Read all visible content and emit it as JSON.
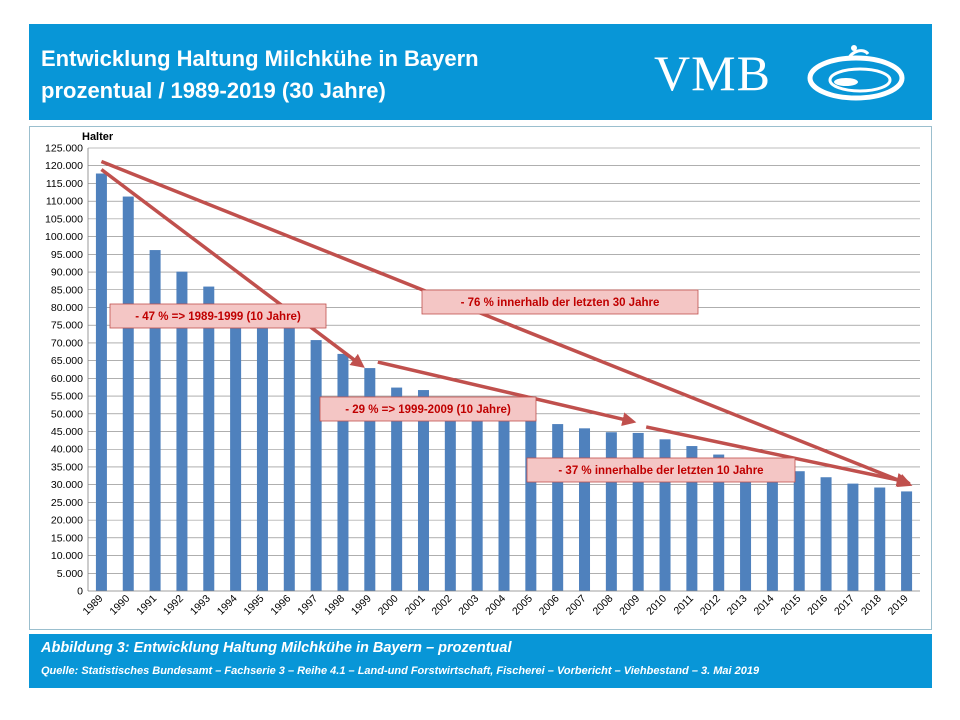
{
  "header": {
    "title_line1": "Entwicklung Haltung Milchkühe in Bayern",
    "title_line2": "prozentual / 1989-2019 (30 Jahre)",
    "logo_text": "VMB"
  },
  "chart_data": {
    "type": "bar",
    "ylabel": "Halter",
    "xlabel": "",
    "ylim": [
      0,
      125000
    ],
    "ytick_step": 5000,
    "ytick_labels": [
      "0",
      "5.000",
      "10.000",
      "15.000",
      "20.000",
      "25.000",
      "30.000",
      "35.000",
      "40.000",
      "45.000",
      "50.000",
      "55.000",
      "60.000",
      "65.000",
      "70.000",
      "75.000",
      "80.000",
      "85.000",
      "90.000",
      "95.000",
      "100.000",
      "105.000",
      "110.000",
      "115.000",
      "120.000",
      "125.000"
    ],
    "grid": true,
    "bar_color": "#4f81bd",
    "categories": [
      "1989",
      "1990",
      "1991",
      "1992",
      "1993",
      "1994",
      "1995",
      "1996",
      "1997",
      "1998",
      "1999",
      "2000",
      "2001",
      "2002",
      "2003",
      "2004",
      "2005",
      "2006",
      "2007",
      "2008",
      "2009",
      "2010",
      "2011",
      "2012",
      "2013",
      "2014",
      "2015",
      "2016",
      "2017",
      "2018",
      "2019"
    ],
    "values": [
      117800,
      111300,
      96200,
      90100,
      85900,
      80100,
      77200,
      74200,
      70800,
      66900,
      62900,
      57400,
      56700,
      52900,
      51300,
      50000,
      48600,
      47100,
      45900,
      44800,
      44600,
      42800,
      40900,
      38500,
      36200,
      34700,
      33800,
      32100,
      30300,
      29200,
      28100
    ],
    "annotations": [
      {
        "text": "- 47 %  => 1989-1999  (10 Jahre)",
        "from": "1989",
        "to": "1999"
      },
      {
        "text": "- 29 % => 1999-2009  (10 Jahre)",
        "from": "1999",
        "to": "2009"
      },
      {
        "text": "- 37 % innerhalbe der letzten 10 Jahre",
        "from": "2009",
        "to": "2019"
      },
      {
        "text": "- 76 % innerhalb der letzten 30 Jahre",
        "from": "1989",
        "to": "2019"
      }
    ],
    "arrow_color": "#c0504d",
    "annotation_fill": "#f4c6c5",
    "annotation_text_color": "#c00000"
  },
  "footer": {
    "caption": "Abbildung 3: Entwicklung Haltung Milchkühe in Bayern – prozentual",
    "source": "Quelle: Statistisches Bundesamt – Fachserie 3 – Reihe 4.1 – Land-und Forstwirtschaft, Fischerei – Vorbericht – Viehbestand – 3. Mai 2019"
  },
  "colors": {
    "header_bg": "#0896d7",
    "gridline": "#7f7f7f"
  }
}
